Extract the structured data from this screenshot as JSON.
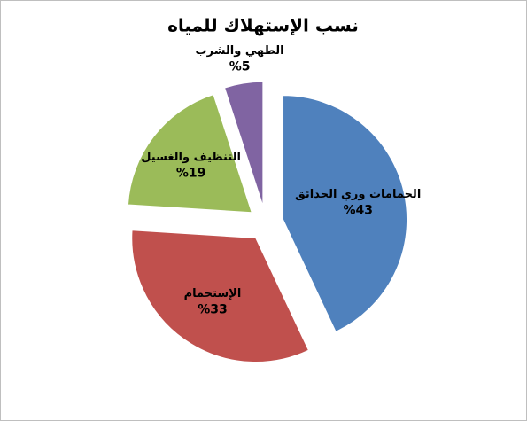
{
  "chart_data": {
    "type": "pie",
    "title": "نسب الإستهلاك للمياه",
    "categories": [
      "الحمامات وري الحدائق",
      "الإستحمام",
      "التنظيف والغسيل",
      "الطهي والشرب"
    ],
    "values": [
      43,
      33,
      19,
      5
    ],
    "value_labels": [
      "%43",
      "%33",
      "%19",
      "%5"
    ],
    "colors": [
      "#4f81bd",
      "#c0504d",
      "#9bbb59",
      "#8064a2"
    ],
    "exploded": true
  }
}
